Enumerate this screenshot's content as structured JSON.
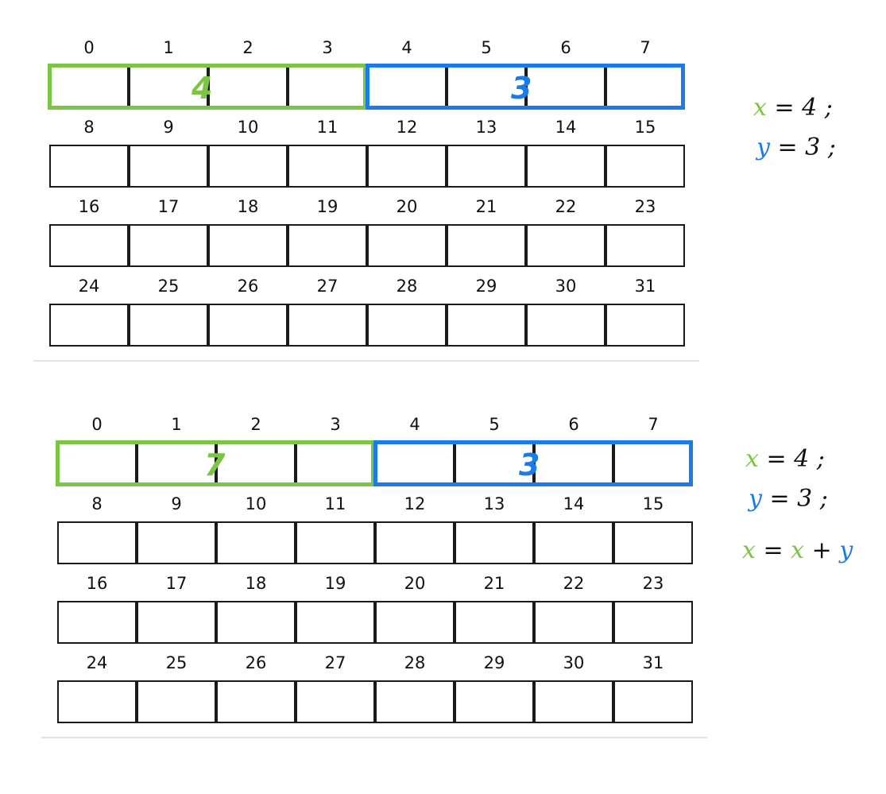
{
  "colors": {
    "x": "#7cc444",
    "y": "#1b7ce8",
    "grid": "#1a1a1a"
  },
  "panels": [
    {
      "rows": [
        [
          "0",
          "1",
          "2",
          "3",
          "4",
          "5",
          "6",
          "7"
        ],
        [
          "8",
          "9",
          "10",
          "11",
          "12",
          "13",
          "14",
          "15"
        ],
        [
          "16",
          "17",
          "18",
          "19",
          "20",
          "21",
          "22",
          "23"
        ],
        [
          "24",
          "25",
          "26",
          "27",
          "28",
          "29",
          "30",
          "31"
        ]
      ],
      "x_value": "4",
      "y_value": "3",
      "notes": [
        {
          "var": "x",
          "rest": "= 4 ;"
        },
        {
          "var": "y",
          "rest": "= 3 ;"
        }
      ]
    },
    {
      "rows": [
        [
          "0",
          "1",
          "2",
          "3",
          "4",
          "5",
          "6",
          "7"
        ],
        [
          "8",
          "9",
          "10",
          "11",
          "12",
          "13",
          "14",
          "15"
        ],
        [
          "16",
          "17",
          "18",
          "19",
          "20",
          "21",
          "22",
          "23"
        ],
        [
          "24",
          "25",
          "26",
          "27",
          "28",
          "29",
          "30",
          "31"
        ]
      ],
      "x_value": "7",
      "y_value": "3",
      "notes": [
        {
          "var": "x",
          "rest": "= 4 ;"
        },
        {
          "var": "y",
          "rest": "= 3 ;"
        }
      ],
      "assignment": {
        "lhs": "x",
        "eq": "=",
        "a": "x",
        "op": "+",
        "b": "y"
      }
    }
  ]
}
